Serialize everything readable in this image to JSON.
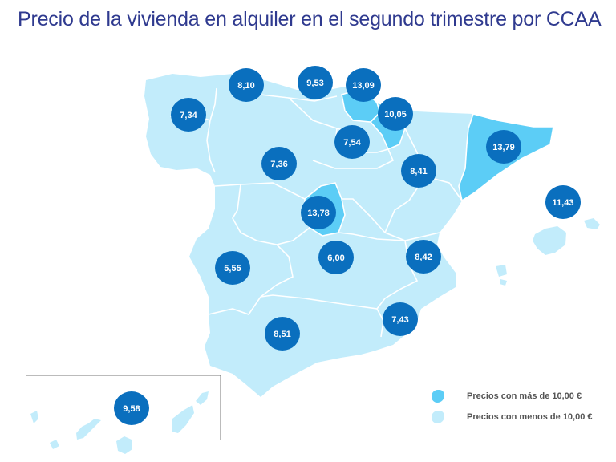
{
  "title": "Precio de la vivienda en alquiler en el segundo trimestre por CCAA",
  "colors": {
    "above_10": "#5ccdf6",
    "below_10": "#c2ecfb",
    "bubble": "#0a6fbe",
    "border": "#ffffff",
    "inset_line": "#777777",
    "title": "#2f3a8f"
  },
  "legend": [
    {
      "label": "Precios con más de 10,00 €",
      "color": "#5ccdf6"
    },
    {
      "label": "Precios con menos de 10,00 €",
      "color": "#c2ecfb"
    }
  ],
  "price_values": [
    {
      "value": "8,10"
    },
    {
      "value": "9,53"
    },
    {
      "value": "13,09"
    },
    {
      "value": "7,34"
    },
    {
      "value": "10,05"
    },
    {
      "value": "7,54"
    },
    {
      "value": "13,79"
    },
    {
      "value": "7,36"
    },
    {
      "value": "8,41"
    },
    {
      "value": "11,43"
    },
    {
      "value": "13,78"
    },
    {
      "value": "5,55"
    },
    {
      "value": "6,00"
    },
    {
      "value": "8,42"
    },
    {
      "value": "7,43"
    },
    {
      "value": "8,51"
    },
    {
      "value": "9,58"
    }
  ]
}
